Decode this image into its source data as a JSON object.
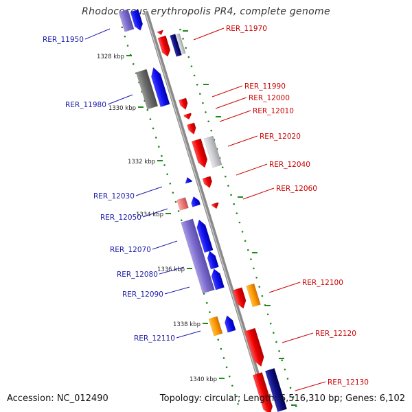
{
  "title": "Rhodococcus erythropolis PR4, complete genome",
  "footer": {
    "accession": "Accession: NC_012490",
    "summary": "Topology: circular; Length: 6,516,310 bp; Genes: 6,102"
  },
  "ticks": [
    {
      "label": "1328 kbp"
    },
    {
      "label": "1330 kbp"
    },
    {
      "label": "1332 kbp"
    },
    {
      "label": "1334 kbp"
    },
    {
      "label": "1336 kbp"
    },
    {
      "label": "1338 kbp"
    },
    {
      "label": "1340 kbp"
    }
  ],
  "genes_left": [
    {
      "name": "RER_11950",
      "color": "#1a1aaa"
    },
    {
      "name": "RER_11980",
      "color": "#1a1aaa"
    },
    {
      "name": "RER_12030",
      "color": "#1a1aaa"
    },
    {
      "name": "RER_12050",
      "color": "#1a1aaa"
    },
    {
      "name": "RER_12070",
      "color": "#1a1aaa"
    },
    {
      "name": "RER_12080",
      "color": "#1a1aaa"
    },
    {
      "name": "RER_12090",
      "color": "#1a1aaa"
    },
    {
      "name": "RER_12110",
      "color": "#1a1aaa"
    }
  ],
  "genes_right": [
    {
      "name": "RER_11970",
      "color": "#cc0000"
    },
    {
      "name": "RER_11990",
      "color": "#cc0000"
    },
    {
      "name": "RER_12000",
      "color": "#cc0000"
    },
    {
      "name": "RER_12010",
      "color": "#cc0000"
    },
    {
      "name": "RER_12020",
      "color": "#cc0000"
    },
    {
      "name": "RER_12040",
      "color": "#cc0000"
    },
    {
      "name": "RER_12060",
      "color": "#cc0000"
    },
    {
      "name": "RER_12100",
      "color": "#cc0000"
    },
    {
      "name": "RER_12120",
      "color": "#cc0000"
    },
    {
      "name": "RER_12130",
      "color": "#cc0000"
    }
  ],
  "colors": {
    "backbone": "#8a8a8a",
    "dots": "#1a8a1a",
    "red": "#ee0000",
    "blue": "#1010ee",
    "purple": "#7a6acc",
    "gray": "#6a6a6a",
    "lightgray": "#c8c8cc",
    "orange": "#ff9900",
    "pink": "#ee7777",
    "navy": "#101080"
  }
}
